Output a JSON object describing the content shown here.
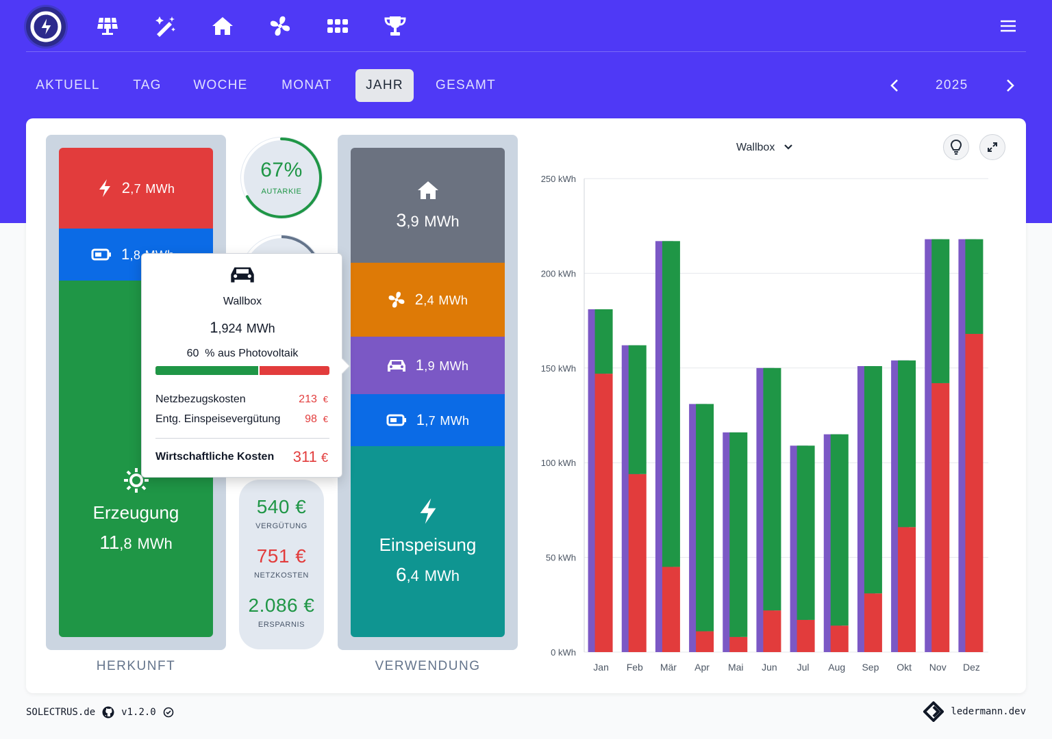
{
  "nav": {
    "icons": [
      "solar-panel-icon",
      "magic-wand-icon",
      "house-icon",
      "fan-icon",
      "grid-icon",
      "trophy-icon"
    ],
    "tabs": [
      "AKTUELL",
      "TAG",
      "WOCHE",
      "MONAT",
      "JAHR",
      "GESAMT"
    ],
    "active_tab": "JAHR",
    "year": "2025"
  },
  "colors": {
    "brand": "#4f39f6",
    "grid": "#e23c3c",
    "battery": "#0b6be6",
    "solar": "#1f9646",
    "house": "#6b7280",
    "heatpump": "#de7a06",
    "wallbox": "#7b58c5",
    "feed": "#0f9591"
  },
  "herkunft": {
    "grid": {
      "int": "2",
      "dec": ",7",
      "unit": "MWh"
    },
    "battery": {
      "int": "1",
      "dec": ",8",
      "unit": "MWh"
    },
    "solar": {
      "label": "Erzeugung",
      "int": "11",
      "dec": ",8",
      "unit": "MWh"
    },
    "label": "HERKUNFT"
  },
  "autarkie": {
    "value": "67%",
    "label": "AUTARKIE",
    "fraction": 0.67
  },
  "money": {
    "verguetung": {
      "value": "540 €",
      "label": "VERGÜTUNG"
    },
    "netzkosten": {
      "value": "751 €",
      "label": "NETZKOSTEN"
    },
    "ersparnis": {
      "value": "2.086 €",
      "label": "ERSPARNIS"
    }
  },
  "verwendung": {
    "house": {
      "int": "3",
      "dec": ",9",
      "unit": "MWh"
    },
    "heatpump": {
      "int": "2",
      "dec": ",4",
      "unit": "MWh"
    },
    "wallbox": {
      "int": "1",
      "dec": ",9",
      "unit": "MWh"
    },
    "battery": {
      "int": "1",
      "dec": ",7",
      "unit": "MWh"
    },
    "feed": {
      "label": "Einspeisung",
      "int": "6",
      "dec": ",4",
      "unit": "MWh"
    },
    "label": "VERWENDUNG"
  },
  "tooltip": {
    "title": "Wallbox",
    "int": "1",
    "dec": ",924",
    "unit": "MWh",
    "pv_percent": "60",
    "pv_suffix": "% aus Photovoltaik",
    "pv_fraction": 0.6,
    "rows": [
      {
        "label": "Netzbezugskosten",
        "value": "213",
        "cur": "€"
      },
      {
        "label": "Entg. Einspeisevergütung",
        "value": "98",
        "cur": "€"
      }
    ],
    "total": {
      "label": "Wirtschaftliche Kosten",
      "value": "311",
      "cur": "€"
    }
  },
  "chart_header": {
    "selected": "Wallbox"
  },
  "chart_data": {
    "type": "bar",
    "categories": [
      "Jan",
      "Feb",
      "Mär",
      "Apr",
      "Mai",
      "Jun",
      "Jul",
      "Aug",
      "Sep",
      "Okt",
      "Nov",
      "Dez"
    ],
    "series": [
      {
        "key": "grid",
        "values": [
          147,
          94,
          45,
          11,
          8,
          22,
          17,
          14,
          31,
          66,
          142,
          168
        ]
      },
      {
        "key": "solar",
        "values": [
          34,
          68,
          172,
          120,
          108,
          128,
          92,
          101,
          120,
          88,
          76,
          50
        ]
      }
    ],
    "yticks": [
      "0 kWh",
      "50 kWh",
      "100 kWh",
      "150 kWh",
      "200 kWh",
      "250 kWh"
    ],
    "ylim": [
      0,
      250
    ],
    "stacked": true
  },
  "footer": {
    "left": "SOLECTRUS.de",
    "version": "v1.2.0",
    "right": "ledermann.dev"
  }
}
